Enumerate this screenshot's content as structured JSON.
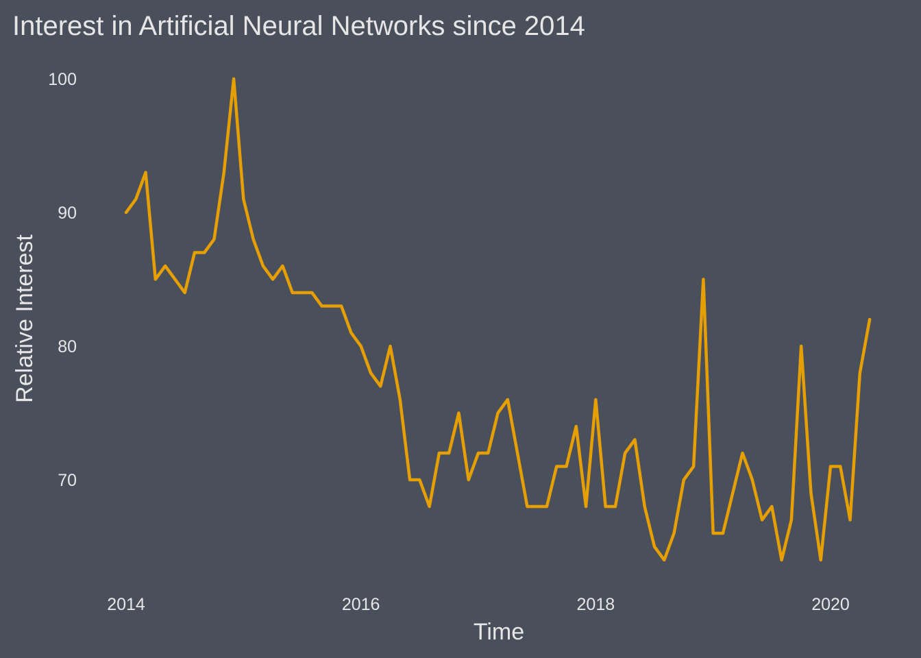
{
  "chart_data": {
    "type": "line",
    "title": "Interest in Artificial Neural Networks since 2014",
    "xlabel": "Time",
    "ylabel": "Relative Interest",
    "x_ticks": [
      "2014",
      "2016",
      "2018",
      "2020"
    ],
    "y_ticks": [
      70,
      80,
      90,
      100
    ],
    "xlim": [
      "2013-11",
      "2020-09"
    ],
    "ylim": [
      62.5,
      102
    ],
    "grid": false,
    "legend": "none",
    "line_color": "#E69F00",
    "background_color": "#4A4F5C",
    "text_color": "#E6E6E6",
    "series": [
      {
        "x": [
          "2014-01",
          "2014-02",
          "2014-03",
          "2014-04",
          "2014-05",
          "2014-06",
          "2014-07",
          "2014-08",
          "2014-09",
          "2014-10",
          "2014-11",
          "2014-12",
          "2015-01",
          "2015-02",
          "2015-03",
          "2015-04",
          "2015-05",
          "2015-06",
          "2015-07",
          "2015-08",
          "2015-09",
          "2015-10",
          "2015-11",
          "2015-12",
          "2016-01",
          "2016-02",
          "2016-03",
          "2016-04",
          "2016-05",
          "2016-06",
          "2016-07",
          "2016-08",
          "2016-09",
          "2016-10",
          "2016-11",
          "2016-12",
          "2017-01",
          "2017-02",
          "2017-03",
          "2017-04",
          "2017-05",
          "2017-06",
          "2017-07",
          "2017-08",
          "2017-09",
          "2017-10",
          "2017-11",
          "2017-12",
          "2018-01",
          "2018-02",
          "2018-03",
          "2018-04",
          "2018-05",
          "2018-06",
          "2018-07",
          "2018-08",
          "2018-09",
          "2018-10",
          "2018-11",
          "2018-12",
          "2019-01",
          "2019-02",
          "2019-03",
          "2019-04",
          "2019-05",
          "2019-06",
          "2019-07",
          "2019-08",
          "2019-09",
          "2019-10",
          "2019-11",
          "2019-12",
          "2020-01",
          "2020-02",
          "2020-03",
          "2020-04",
          "2020-05"
        ],
        "values": [
          90,
          91,
          93,
          85,
          86,
          85,
          84,
          87,
          87,
          88,
          93,
          100,
          91,
          88,
          86,
          85,
          86,
          84,
          84,
          84,
          83,
          83,
          83,
          81,
          80,
          78,
          77,
          80,
          76,
          70,
          70,
          68,
          72,
          72,
          75,
          70,
          72,
          72,
          75,
          76,
          72,
          68,
          68,
          68,
          71,
          71,
          74,
          68,
          76,
          68,
          68,
          72,
          73,
          68,
          65,
          64,
          66,
          70,
          71,
          85,
          66,
          66,
          69,
          72,
          70,
          67,
          68,
          64,
          67,
          80,
          69,
          64,
          71,
          71,
          67,
          78,
          82
        ]
      }
    ]
  }
}
